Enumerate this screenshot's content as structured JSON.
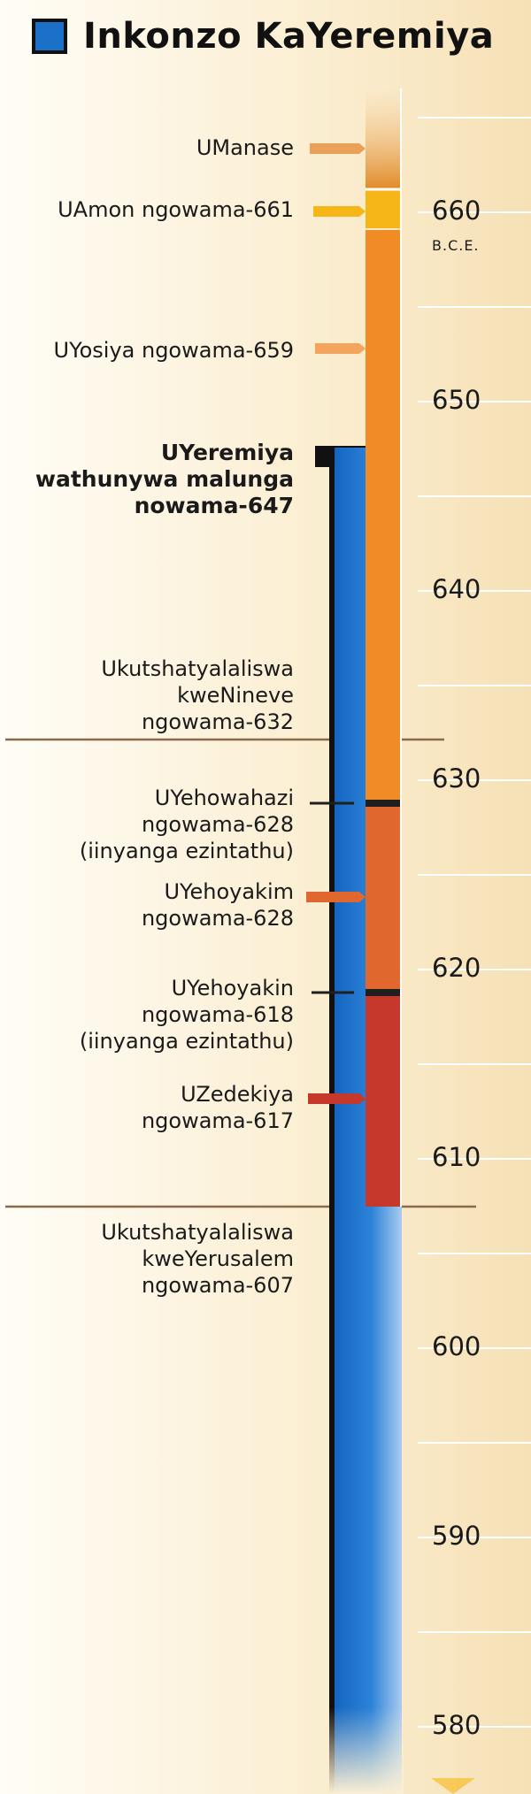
{
  "title": "Inkonzo KaYeremiya",
  "colors": {
    "jeremiah": "#1a6fc7",
    "manasseh": "#e08a26",
    "amon": "#f7b617",
    "josiah": "#f08b25",
    "jehoahaz": "#1f1f1f",
    "jehoiakim": "#e0672d",
    "jehoiachin": "#1f1f1f",
    "zedekiah": "#c5382b"
  },
  "era_label": "B.C.E.",
  "ticks": [
    "660",
    "650",
    "640",
    "630",
    "620",
    "610",
    "600",
    "590",
    "580"
  ],
  "labels": [
    {
      "id": "manasseh",
      "lines": [
        "UManase"
      ],
      "bold": false
    },
    {
      "id": "amon",
      "lines": [
        "UAmon ngowama-661"
      ],
      "bold": false
    },
    {
      "id": "josiah",
      "lines": [
        "UYosiya ngowama-659"
      ],
      "bold": false
    },
    {
      "id": "jeremiah",
      "lines": [
        "UYeremiya",
        "wathunywa malunga",
        "nowama-647"
      ],
      "bold": true
    },
    {
      "id": "nineveh",
      "lines": [
        "Ukutshatyalaliswa",
        "kweNineve",
        "ngowama-632"
      ],
      "bold": false
    },
    {
      "id": "jehoahaz",
      "lines": [
        "UYehowahazi",
        "ngowama-628",
        "(iinyanga ezintathu)"
      ],
      "bold": false
    },
    {
      "id": "jehoiakim",
      "lines": [
        "UYehoyakim",
        "ngowama-628"
      ],
      "bold": false
    },
    {
      "id": "jehoiachin",
      "lines": [
        "UYehoyakin",
        "ngowama-618",
        "(iinyanga ezintathu)"
      ],
      "bold": false
    },
    {
      "id": "zedekiah",
      "lines": [
        "UZedekiya",
        "ngowama-617"
      ],
      "bold": false
    },
    {
      "id": "jerusalem",
      "lines": [
        "Ukutshatyalaliswa",
        "kweYerusalem",
        "ngowama-607"
      ],
      "bold": false
    }
  ]
}
